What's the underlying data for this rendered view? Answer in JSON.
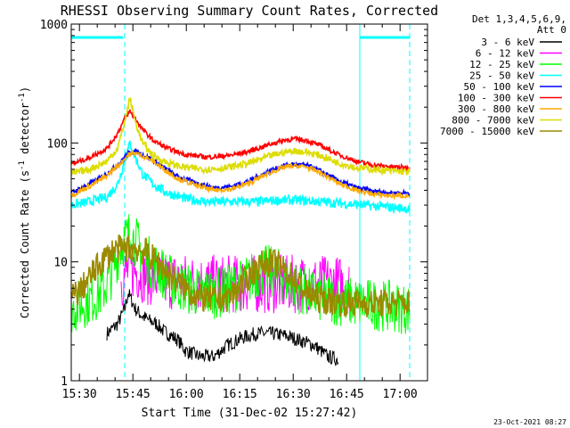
{
  "chart_data": {
    "type": "line",
    "title": "RHESSI Observing Summary Count Rates, Corrected",
    "xlabel": "Start Time (31-Dec-02 15:27:42)",
    "ylabel_parts": [
      "Corrected Count Rate (s",
      "-1",
      " detector",
      "-1",
      ")"
    ],
    "xlim_min": [
      0,
      100
    ],
    "ylim": [
      1,
      1000
    ],
    "yscale": "log",
    "x_ticks": [
      {
        "t": 2.3,
        "label": "15:30"
      },
      {
        "t": 17.3,
        "label": "15:45"
      },
      {
        "t": 32.3,
        "label": "16:00"
      },
      {
        "t": 47.3,
        "label": "16:15"
      },
      {
        "t": 62.3,
        "label": "16:30"
      },
      {
        "t": 77.3,
        "label": "16:45"
      },
      {
        "t": 92.3,
        "label": "17:00"
      }
    ],
    "y_ticks": [
      {
        "v": 1,
        "label": "1"
      },
      {
        "v": 10,
        "label": "10"
      },
      {
        "v": 100,
        "label": "100"
      },
      {
        "v": 1000,
        "label": "1000"
      }
    ],
    "legend_header": [
      "Det 1,3,4,5,6,9,",
      "Att 0"
    ],
    "series": [
      {
        "name": "3 - 6 keV",
        "color": "#000000",
        "x": [
          10,
          13,
          15,
          16,
          18,
          20,
          22,
          24,
          26,
          28,
          30,
          32,
          36,
          40,
          44,
          48,
          52,
          56,
          60,
          64,
          68,
          72,
          74.9
        ],
        "values": [
          2.5,
          3.0,
          4.0,
          5.5,
          4.0,
          3.5,
          3.2,
          3.0,
          2.6,
          2.4,
          2.2,
          1.8,
          1.6,
          1.6,
          2.0,
          2.3,
          2.5,
          2.5,
          2.4,
          2.2,
          2.0,
          1.6,
          1.5
        ]
      },
      {
        "name": "6 - 12 keV",
        "color": "#ff00ff",
        "x": [
          14,
          16,
          18,
          20,
          22,
          26,
          30,
          40,
          50,
          60,
          70,
          78
        ],
        "values": [
          7.0,
          8.5,
          8.5,
          8.0,
          7.5,
          7.0,
          6.8,
          6.5,
          6.5,
          6.5,
          6.5,
          6.4
        ]
      },
      {
        "name": "12 - 25 keV",
        "color": "#00ff00",
        "x": [
          0,
          2,
          4,
          6,
          8,
          10,
          12,
          14,
          15.5,
          16.5,
          18,
          20,
          22,
          25,
          28,
          32,
          36,
          42,
          48,
          52,
          55,
          58,
          62,
          66,
          70,
          74,
          78,
          84,
          90,
          95
        ],
        "values": [
          4.0,
          4.3,
          4.6,
          5.0,
          5.4,
          6.5,
          9.0,
          14.0,
          16.0,
          17.0,
          15.0,
          12.0,
          10.0,
          8.5,
          7.0,
          6.0,
          5.5,
          5.5,
          6.5,
          8.0,
          8.5,
          8.0,
          6.5,
          5.5,
          5.0,
          4.8,
          4.6,
          4.4,
          4.2,
          4.0
        ]
      },
      {
        "name": "25 - 50 keV",
        "color": "#00ffff",
        "x": [
          0,
          5,
          10,
          13,
          15,
          16.5,
          18,
          20,
          23,
          27,
          32,
          38,
          45,
          52,
          58,
          64,
          70,
          76,
          82,
          88,
          95
        ],
        "values": [
          30,
          32,
          35,
          45,
          70,
          100,
          75,
          55,
          45,
          38,
          34,
          32,
          32,
          32,
          33,
          33,
          32,
          31,
          30,
          29,
          28
        ]
      },
      {
        "name": "50 - 100 keV",
        "color": "#0000ff",
        "x": [
          0,
          5,
          10,
          14,
          16,
          18,
          20,
          23,
          26,
          30,
          35,
          40,
          45,
          50,
          55,
          60,
          63,
          66,
          70,
          75,
          80,
          85,
          90,
          95
        ],
        "values": [
          38,
          45,
          55,
          70,
          82,
          85,
          80,
          72,
          62,
          52,
          46,
          42,
          43,
          48,
          57,
          65,
          66,
          65,
          58,
          48,
          42,
          39,
          38,
          38
        ]
      },
      {
        "name": "100 - 300 keV",
        "color": "#ff0000",
        "x": [
          0,
          5,
          10,
          13,
          15,
          16.5,
          18,
          20,
          23,
          27,
          32,
          38,
          44,
          50,
          56,
          60,
          63,
          66,
          70,
          75,
          80,
          85,
          90,
          95
        ],
        "values": [
          66,
          75,
          90,
          120,
          160,
          185,
          160,
          130,
          105,
          90,
          80,
          76,
          78,
          85,
          98,
          106,
          108,
          105,
          95,
          80,
          70,
          65,
          63,
          62
        ]
      },
      {
        "name": "300 - 800 keV",
        "color": "#ffaa00",
        "x": [
          0,
          5,
          10,
          14,
          16,
          18,
          20,
          23,
          26,
          30,
          35,
          40,
          45,
          50,
          55,
          60,
          63,
          66,
          70,
          75,
          80,
          85,
          90,
          95
        ],
        "values": [
          36,
          43,
          53,
          68,
          80,
          82,
          78,
          70,
          60,
          50,
          44,
          40,
          41,
          46,
          55,
          63,
          64,
          63,
          56,
          46,
          40,
          37,
          36,
          36
        ]
      },
      {
        "name": "800 - 7000 keV",
        "color": "#dddd00",
        "x": [
          0,
          5,
          10,
          13,
          15,
          16.5,
          18,
          20,
          23,
          27,
          32,
          38,
          44,
          50,
          56,
          60,
          63,
          66,
          70,
          75,
          80,
          85,
          90,
          95
        ],
        "values": [
          55,
          60,
          70,
          90,
          150,
          240,
          150,
          100,
          78,
          68,
          62,
          60,
          62,
          68,
          78,
          84,
          86,
          84,
          78,
          68,
          62,
          60,
          58,
          57
        ]
      },
      {
        "name": "7000 - 15000 keV",
        "color": "#9b8a00",
        "x": [
          0,
          3,
          6,
          9,
          12,
          15,
          18,
          21,
          24,
          28,
          32,
          36,
          40,
          44,
          48,
          52,
          55,
          58,
          62,
          66,
          70,
          75,
          80,
          85,
          90,
          95
        ],
        "values": [
          5.0,
          6.0,
          8.0,
          10.5,
          12.5,
          13.0,
          13.0,
          12.0,
          10.0,
          7.5,
          6.0,
          5.0,
          4.8,
          5.0,
          6.5,
          9.0,
          10.0,
          9.5,
          7.5,
          5.5,
          4.8,
          4.6,
          4.5,
          4.5,
          4.5,
          4.5
        ]
      }
    ],
    "attenuator_segments": [
      [
        0,
        14.5
      ],
      [
        81,
        95
      ]
    ],
    "vertical_markers": [
      15,
      81,
      95
    ],
    "footer_date": "23-Oct-2021 08:27"
  }
}
